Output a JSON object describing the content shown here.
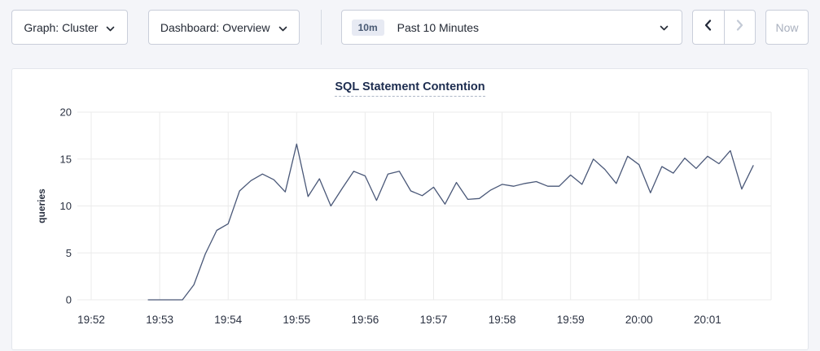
{
  "toolbar": {
    "graph_dropdown": {
      "label": "Graph: Cluster",
      "icon": "chevron-down-icon"
    },
    "dashboard_dropdown": {
      "label": "Dashboard: Overview",
      "icon": "chevron-down-icon"
    },
    "time_picker": {
      "badge": "10m",
      "label": "Past 10 Minutes",
      "icon": "chevron-down-icon"
    },
    "prev_button": {
      "icon": "chevron-left-icon",
      "enabled": true
    },
    "next_button": {
      "icon": "chevron-right-icon",
      "enabled": false
    },
    "now_button": {
      "label": "Now",
      "enabled": false
    }
  },
  "chart_data": {
    "type": "line",
    "title": "SQL Statement Contention",
    "xlabel": "",
    "ylabel": "queries",
    "ylim": [
      0,
      20
    ],
    "yticks": [
      0,
      5,
      10,
      15,
      20
    ],
    "xticks": [
      "19:52",
      "19:53",
      "19:54",
      "19:55",
      "19:56",
      "19:57",
      "19:58",
      "19:59",
      "20:00",
      "20:01"
    ],
    "grid": true,
    "legend": "none",
    "colors": {
      "line": "#4a5878",
      "grid": "#ebebeb",
      "tick_text": "#2b3242",
      "title": "#1c2c4f"
    },
    "series": [
      {
        "name": "SQL Statement Contention",
        "times": [
          "19:52:50",
          "19:53:00",
          "19:53:10",
          "19:53:20",
          "19:53:30",
          "19:53:40",
          "19:53:50",
          "19:54:00",
          "19:54:10",
          "19:54:20",
          "19:54:30",
          "19:54:40",
          "19:54:50",
          "19:55:00",
          "19:55:10",
          "19:55:20",
          "19:55:30",
          "19:55:40",
          "19:55:50",
          "19:56:00",
          "19:56:10",
          "19:56:20",
          "19:56:30",
          "19:56:40",
          "19:56:50",
          "19:57:00",
          "19:57:10",
          "19:57:20",
          "19:57:30",
          "19:57:40",
          "19:57:50",
          "19:58:00",
          "19:58:10",
          "19:58:20",
          "19:58:30",
          "19:58:40",
          "19:58:50",
          "19:59:00",
          "19:59:10",
          "19:59:20",
          "19:59:30",
          "19:59:40",
          "19:59:50",
          "20:00:00",
          "20:00:10",
          "20:00:20",
          "20:00:30",
          "20:00:40",
          "20:00:50",
          "20:01:00",
          "20:01:10",
          "20:01:20",
          "20:01:30",
          "20:01:40"
        ],
        "values": [
          0,
          0,
          0,
          0,
          1.6,
          4.9,
          7.4,
          8.1,
          11.6,
          12.7,
          13.4,
          12.8,
          11.5,
          16.6,
          11.0,
          12.9,
          10.0,
          11.9,
          13.7,
          13.2,
          10.6,
          13.4,
          13.7,
          11.6,
          11.1,
          12.0,
          10.2,
          12.5,
          10.7,
          10.8,
          11.7,
          12.3,
          12.1,
          12.4,
          12.6,
          12.1,
          12.1,
          13.3,
          12.3,
          15.0,
          13.9,
          12.4,
          15.3,
          14.4,
          11.4,
          14.2,
          13.5,
          15.1,
          14.0,
          15.3,
          14.5,
          15.9,
          11.8,
          14.3
        ]
      }
    ]
  }
}
